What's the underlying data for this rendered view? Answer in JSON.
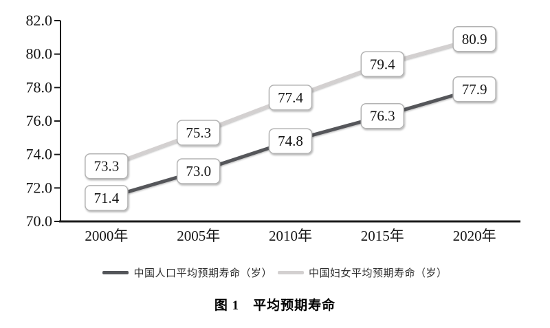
{
  "caption": "图 1　平均预期寿命",
  "chart_data": {
    "type": "line",
    "title": "图 1　平均预期寿命",
    "categories": [
      "2000年",
      "2005年",
      "2010年",
      "2015年",
      "2020年"
    ],
    "series": [
      {
        "name": "中国人口平均预期寿命（岁）",
        "values": [
          71.4,
          73.0,
          74.8,
          76.3,
          77.9
        ],
        "color": "#54565a"
      },
      {
        "name": "中国妇女平均预期寿命（岁）",
        "values": [
          73.3,
          75.3,
          77.4,
          79.4,
          80.9
        ],
        "color": "#d3d0d0"
      }
    ],
    "ylim": [
      70.0,
      82.0
    ],
    "yticks": [
      "82.0",
      "80.0",
      "78.0",
      "76.0",
      "74.0",
      "72.0",
      "70.0"
    ],
    "xlabel": "",
    "ylabel": "",
    "grid": false,
    "legend_position": "bottom",
    "data_labels": true,
    "data_label_box": {
      "fill": "#ffffff",
      "border": "#b3b3b3"
    },
    "axis_color": "#1a1a1a"
  }
}
